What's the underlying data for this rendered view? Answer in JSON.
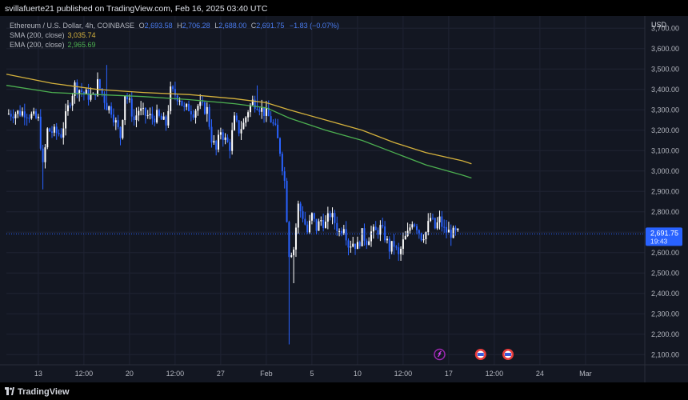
{
  "header": {
    "published": "svillafuerte21 published on TradingView.com, Feb 16, 2025 03:40 UTC"
  },
  "legend": {
    "symbol": "Ethereum / U.S. Dollar, 4h, COINBASE",
    "ohlc": [
      {
        "k": "O",
        "v": "2,693.58"
      },
      {
        "k": "H",
        "v": "2,706.28"
      },
      {
        "k": "L",
        "v": "2,688.00"
      },
      {
        "k": "C",
        "v": "2,691.75"
      }
    ],
    "change": "−1.83 (−0.07%)",
    "sma_label": "SMA (200, close)",
    "sma_value": "3,035.74",
    "ema_label": "EMA (200, close)",
    "ema_value": "2,965.69"
  },
  "footer": {
    "brand": "TradingView"
  },
  "colors": {
    "background": "#131722",
    "candle": "#2962ff",
    "candle_up": "#ffffff",
    "sma": "#d4b13c",
    "ema": "#4caf50",
    "price_tag": "#2962ff",
    "event_icon": "#e83b3b"
  },
  "chart_data": {
    "type": "candlestick",
    "currency": "USD",
    "ylim": [
      2050,
      3760
    ],
    "y_ticks": [
      2100,
      2200,
      2300,
      2400,
      2500,
      2600,
      2700,
      2800,
      2900,
      3000,
      3100,
      3200,
      3300,
      3400,
      3500,
      3600,
      3700
    ],
    "y_tick_labels": [
      "2,100.00",
      "2,200.00",
      "2,300.00",
      "2,400.00",
      "2,500.00",
      "2,600.00",
      "2,700.00",
      "2,800.00",
      "2,900.00",
      "3,000.00",
      "3,100.00",
      "3,200.00",
      "3,300.00",
      "3,400.00",
      "3,500.00",
      "3,600.00",
      "3,700.00"
    ],
    "x_ticks": [
      {
        "label": "13",
        "bar": 7
      },
      {
        "label": "12:00",
        "bar": 17
      },
      {
        "label": "20",
        "bar": 27
      },
      {
        "label": "12:00",
        "bar": 37
      },
      {
        "label": "27",
        "bar": 47
      },
      {
        "label": "Feb",
        "bar": 57
      },
      {
        "label": "5",
        "bar": 67
      },
      {
        "label": "10",
        "bar": 77
      },
      {
        "label": "12:00",
        "bar": 87
      },
      {
        "label": "17",
        "bar": 97
      },
      {
        "label": "12:00",
        "bar": 107
      },
      {
        "label": "24",
        "bar": 117
      },
      {
        "label": "Mar",
        "bar": 127
      }
    ],
    "total_bars": 140,
    "last_price": 2691.75,
    "last_price_label": "2,691.75",
    "countdown": "19:43",
    "close_path": [
      [
        0,
        3280
      ],
      [
        4,
        3290
      ],
      [
        7,
        3250
      ],
      [
        8,
        3020
      ],
      [
        9,
        3200
      ],
      [
        12,
        3180
      ],
      [
        14,
        3350
      ],
      [
        15,
        3420
      ],
      [
        17,
        3380
      ],
      [
        19,
        3360
      ],
      [
        20,
        3430
      ],
      [
        21,
        3380
      ],
      [
        22,
        3320
      ],
      [
        23,
        3300
      ],
      [
        25,
        3170
      ],
      [
        26,
        3380
      ],
      [
        27,
        3330
      ],
      [
        28,
        3250
      ],
      [
        29,
        3300
      ],
      [
        30,
        3280
      ],
      [
        32,
        3260
      ],
      [
        33,
        3270
      ],
      [
        35,
        3230
      ],
      [
        36,
        3390
      ],
      [
        38,
        3360
      ],
      [
        39,
        3300
      ],
      [
        40,
        3310
      ],
      [
        41,
        3290
      ],
      [
        42,
        3320
      ],
      [
        44,
        3300
      ],
      [
        45,
        3160
      ],
      [
        46,
        3100
      ],
      [
        47,
        3200
      ],
      [
        48,
        3150
      ],
      [
        49,
        3120
      ],
      [
        50,
        3250
      ],
      [
        51,
        3200
      ],
      [
        52,
        3230
      ],
      [
        53,
        3300
      ],
      [
        54,
        3340
      ],
      [
        55,
        3330
      ],
      [
        56,
        3300
      ],
      [
        57,
        3280
      ],
      [
        58,
        3250
      ],
      [
        59,
        3200
      ],
      [
        60,
        3100
      ],
      [
        61,
        2950
      ],
      [
        62,
        2600
      ],
      [
        63,
        2620
      ],
      [
        64,
        2830
      ],
      [
        65,
        2780
      ],
      [
        66,
        2700
      ],
      [
        67,
        2780
      ],
      [
        68,
        2720
      ],
      [
        69,
        2760
      ],
      [
        70,
        2740
      ],
      [
        71,
        2790
      ],
      [
        72,
        2750
      ],
      [
        73,
        2700
      ],
      [
        74,
        2740
      ],
      [
        75,
        2640
      ],
      [
        76,
        2650
      ],
      [
        77,
        2630
      ],
      [
        78,
        2690
      ],
      [
        79,
        2660
      ],
      [
        80,
        2700
      ],
      [
        81,
        2700
      ],
      [
        82,
        2720
      ],
      [
        83,
        2680
      ],
      [
        84,
        2620
      ],
      [
        85,
        2640
      ],
      [
        86,
        2580
      ],
      [
        87,
        2650
      ],
      [
        88,
        2690
      ],
      [
        89,
        2760
      ],
      [
        90,
        2730
      ],
      [
        91,
        2680
      ],
      [
        92,
        2700
      ],
      [
        93,
        2770
      ],
      [
        94,
        2720
      ],
      [
        95,
        2760
      ],
      [
        96,
        2710
      ],
      [
        97,
        2700
      ],
      [
        98,
        2693
      ],
      [
        99,
        2691.75
      ]
    ],
    "extremes": [
      {
        "bar": 62,
        "low": 2150
      },
      {
        "bar": 63,
        "low": 2450
      },
      {
        "bar": 22,
        "high": 3520
      },
      {
        "bar": 55,
        "high": 3420
      },
      {
        "bar": 8,
        "low": 2910
      }
    ],
    "sma": {
      "name": "SMA (200, close)",
      "points": [
        [
          0,
          3475
        ],
        [
          10,
          3430
        ],
        [
          20,
          3400
        ],
        [
          30,
          3385
        ],
        [
          40,
          3375
        ],
        [
          50,
          3355
        ],
        [
          57,
          3335
        ],
        [
          62,
          3300
        ],
        [
          70,
          3250
        ],
        [
          78,
          3200
        ],
        [
          85,
          3140
        ],
        [
          92,
          3090
        ],
        [
          100,
          3050
        ],
        [
          102,
          3035.74
        ]
      ]
    },
    "ema": {
      "name": "EMA (200, close)",
      "points": [
        [
          0,
          3420
        ],
        [
          10,
          3385
        ],
        [
          20,
          3375
        ],
        [
          30,
          3365
        ],
        [
          40,
          3350
        ],
        [
          50,
          3330
        ],
        [
          57,
          3310
        ],
        [
          62,
          3260
        ],
        [
          70,
          3200
        ],
        [
          78,
          3150
        ],
        [
          85,
          3090
        ],
        [
          92,
          3030
        ],
        [
          100,
          2980
        ],
        [
          102,
          2965.69
        ]
      ]
    },
    "events": [
      {
        "bar": 95,
        "type": "split"
      },
      {
        "bar": 104,
        "type": "econ"
      },
      {
        "bar": 110,
        "type": "econ"
      }
    ]
  }
}
